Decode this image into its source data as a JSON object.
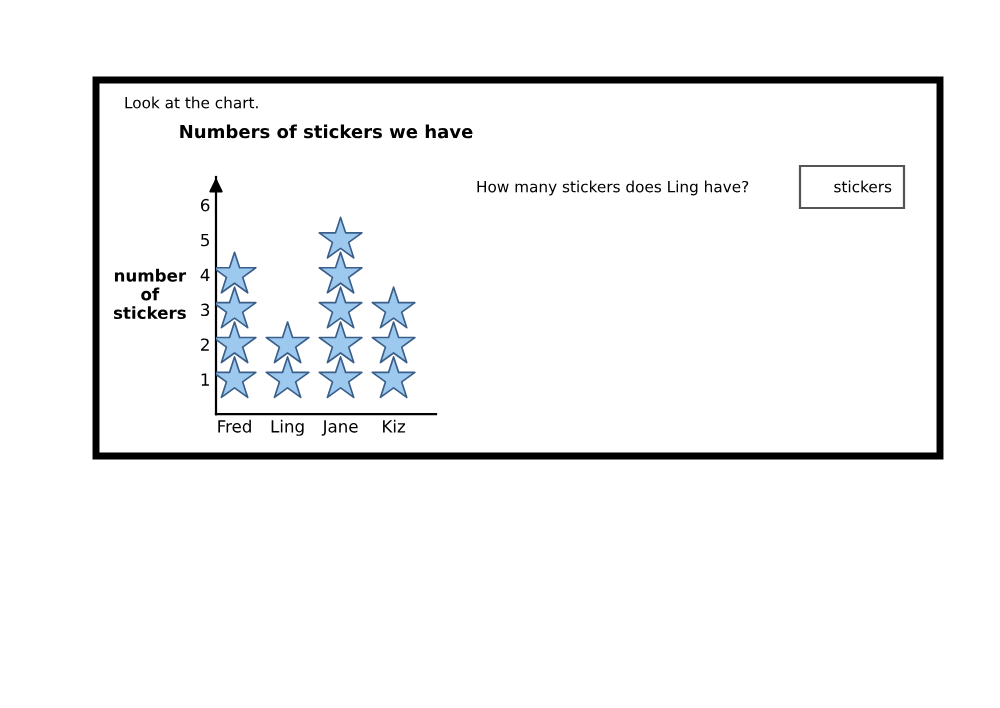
{
  "chart_data": {
    "type": "scatter",
    "title": "Numbers of stickers we have",
    "ylabel": "number\nof\nstickers",
    "categories": [
      "Fred",
      "Ling",
      "Jane",
      "Kiz"
    ],
    "series": [
      {
        "color": "#9dc9ee",
        "x": [
          "Fred",
          "Fred",
          "Fred",
          "Fred",
          "Ling",
          "Ling",
          "Jane",
          "Jane",
          "Jane",
          "Jane",
          "Jane",
          "Kiz",
          "Kiz",
          "Kiz"
        ],
        "values": [
          1,
          2,
          3,
          4,
          1,
          2,
          1,
          2,
          3,
          4,
          5,
          1,
          2,
          3
        ]
      }
    ],
    "marker": "star",
    "ylim": [
      0,
      6.8
    ],
    "yticks": [
      1,
      2,
      3,
      4,
      5,
      6
    ],
    "grid": false,
    "legend": false,
    "annotations": [
      "Look at the chart.",
      "How many stickers does Ling have?",
      "stickers"
    ]
  }
}
